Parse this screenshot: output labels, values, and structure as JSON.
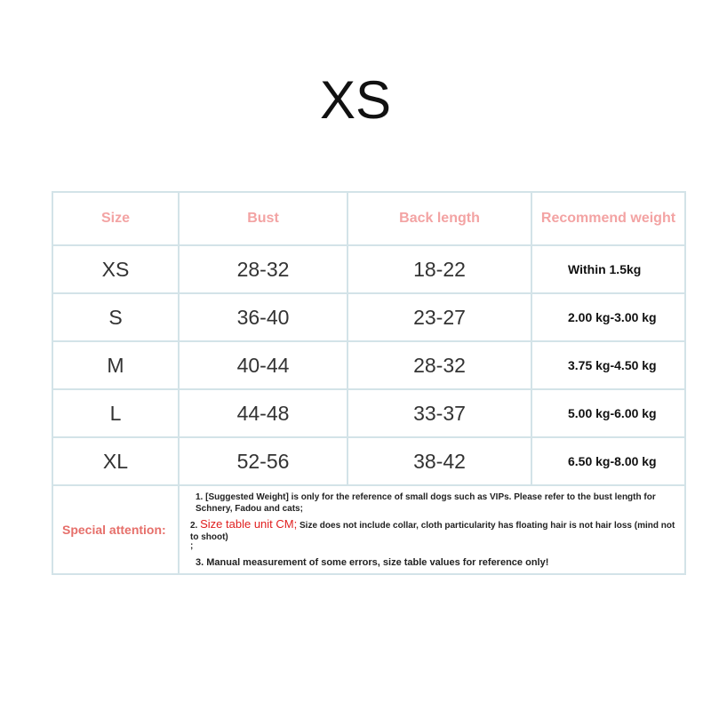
{
  "title": "XS",
  "table": {
    "headers": [
      "Size",
      "Bust",
      "Back length",
      "Recommend weight"
    ],
    "rows": [
      [
        "XS",
        "28-32",
        "18-22",
        "Within 1.5kg"
      ],
      [
        "S",
        "36-40",
        "23-27",
        "2.00 kg-3.00 kg"
      ],
      [
        "M",
        "40-44",
        "28-32",
        "3.75 kg-4.50 kg"
      ],
      [
        "L",
        "44-48",
        "33-37",
        "5.00 kg-6.00 kg"
      ],
      [
        "XL",
        "52-56",
        "38-42",
        "6.50 kg-8.00 kg"
      ]
    ]
  },
  "notes": {
    "label": "Special attention:",
    "note1": "1. [Suggested Weight] is only for the reference of small dogs such as VIPs. Please refer to the bust length for Schnery, Fadou and cats;",
    "note2_number": "2.",
    "note2_highlight": "Size table unit CM;",
    "note2_text": "Size does not include collar, cloth particularity has floating hair is not hair loss (mind not to shoot)",
    "note2_end": ";",
    "note3": "3. Manual measurement of some errors, size table values for reference only!"
  }
}
